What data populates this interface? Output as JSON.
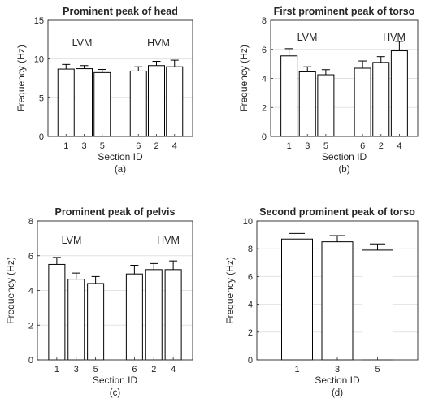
{
  "chart_data": [
    {
      "type": "bar",
      "title": "Prominent peak of head",
      "xlabel": "Section ID",
      "ylabel": "Frequency (Hz)",
      "subcaption": "(a)",
      "ylim": [
        0,
        15
      ],
      "yticks": [
        "0",
        "5",
        "10",
        "15"
      ],
      "groups": [
        "LVM",
        "HVM"
      ],
      "categories": [
        "1",
        "3",
        "5",
        "6",
        "2",
        "4"
      ],
      "values": [
        8.7,
        8.75,
        8.25,
        8.45,
        9.15,
        9.0
      ],
      "error_upper": [
        0.6,
        0.4,
        0.4,
        0.55,
        0.55,
        0.85
      ],
      "grid": "horizontal"
    },
    {
      "type": "bar",
      "title": "First prominent peak of torso",
      "xlabel": "Section ID",
      "ylabel": "Frequency (Hz)",
      "subcaption": "(b)",
      "ylim": [
        0,
        8
      ],
      "yticks": [
        "0",
        "2",
        "4",
        "6",
        "8"
      ],
      "groups": [
        "LVM",
        "HVM"
      ],
      "categories": [
        "1",
        "3",
        "5",
        "6",
        "2",
        "4"
      ],
      "values": [
        5.55,
        4.45,
        4.25,
        4.7,
        5.1,
        5.9
      ],
      "error_upper": [
        0.5,
        0.35,
        0.35,
        0.5,
        0.4,
        0.65
      ],
      "grid": "horizontal"
    },
    {
      "type": "bar",
      "title": "Prominent peak of pelvis",
      "xlabel": "Section ID",
      "ylabel": "Frequency (Hz)",
      "subcaption": "(c)",
      "ylim": [
        0,
        8
      ],
      "yticks": [
        "0",
        "2",
        "4",
        "6",
        "8"
      ],
      "groups": [
        "LVM",
        "HVM"
      ],
      "categories": [
        "1",
        "3",
        "5",
        "6",
        "2",
        "4"
      ],
      "values": [
        5.5,
        4.65,
        4.4,
        4.95,
        5.2,
        5.2
      ],
      "error_upper": [
        0.4,
        0.35,
        0.4,
        0.5,
        0.35,
        0.5
      ],
      "grid": "horizontal"
    },
    {
      "type": "bar",
      "title": "Second prominent peak of torso",
      "xlabel": "Section ID",
      "ylabel": "Frequency (Hz)",
      "subcaption": "(d)",
      "ylim": [
        0,
        10
      ],
      "yticks": [
        "0",
        "2",
        "4",
        "6",
        "8",
        "10"
      ],
      "groups": [],
      "categories": [
        "1",
        "3",
        "5"
      ],
      "values": [
        8.7,
        8.5,
        7.9
      ],
      "error_upper": [
        0.4,
        0.45,
        0.45
      ],
      "grid": "horizontal"
    }
  ],
  "colors": {
    "bar_fill": "#ffffff",
    "bar_edge": "#000000",
    "axis": "#262626",
    "grid": "#e3e3e3"
  }
}
